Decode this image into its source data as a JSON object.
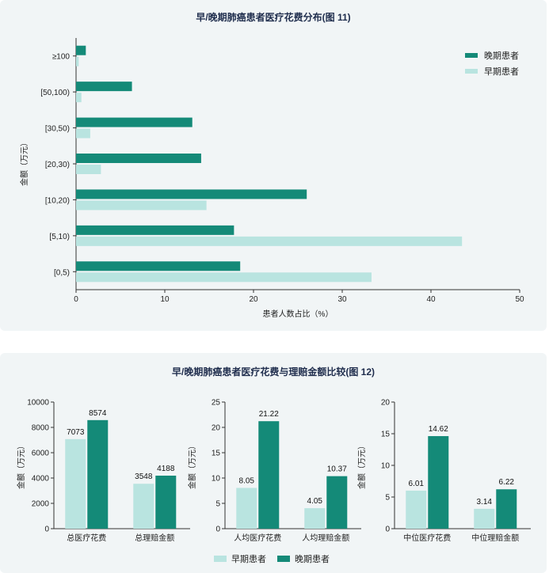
{
  "colors": {
    "early": "#b9e4e0",
    "late": "#148a78",
    "title": "#1f2d4d"
  },
  "chart_data": [
    {
      "type": "bar",
      "orientation": "horizontal",
      "title": "早/晚期肺癌患者医疗花费分布(图 11)",
      "xlabel": "患者人数占比（%）",
      "ylabel": "金额（万元）",
      "xlim": [
        0,
        50
      ],
      "xticks": [
        "0",
        "10",
        "20",
        "30",
        "40",
        "50"
      ],
      "categories": [
        "≥100",
        "[50,100)",
        "[30,50)",
        "[20,30)",
        "[10,20)",
        "[5,10)",
        "[0,5)"
      ],
      "series": [
        {
          "name": "晚期患者",
          "values": [
            1.1,
            6.3,
            13.1,
            14.1,
            26.0,
            17.8,
            18.5
          ]
        },
        {
          "name": "早期患者",
          "values": [
            0.3,
            0.6,
            1.6,
            2.8,
            14.7,
            43.5,
            33.3
          ]
        }
      ],
      "legend": "top-right"
    },
    {
      "type": "bar",
      "title": "早/晚期肺癌患者医疗花费与理赔金额比较(图 12)",
      "legend": "bottom-center",
      "legend_labels": [
        "早期患者",
        "晚期患者"
      ],
      "subplots": [
        {
          "ylabel": "金额（万元）",
          "ylim": [
            0,
            10000
          ],
          "yticks": [
            "0",
            "2000",
            "4000",
            "6000",
            "8000",
            "10000"
          ],
          "categories": [
            "总医疗花费",
            "总理赔金额"
          ],
          "early": [
            7073,
            3548
          ],
          "late": [
            8574,
            4188
          ],
          "early_labels": [
            "7073",
            "3548"
          ],
          "late_labels": [
            "8574",
            "4188"
          ]
        },
        {
          "ylabel": "金额（万元）",
          "ylim": [
            0,
            25
          ],
          "yticks": [
            "0",
            "5",
            "10",
            "15",
            "20",
            "25"
          ],
          "categories": [
            "人均医疗花费",
            "人均理赔金额"
          ],
          "early": [
            8.05,
            4.05
          ],
          "late": [
            21.22,
            10.37
          ],
          "early_labels": [
            "8.05",
            "4.05"
          ],
          "late_labels": [
            "21.22",
            "10.37"
          ]
        },
        {
          "ylabel": "金额（万元）",
          "ylim": [
            0,
            20
          ],
          "yticks": [
            "0",
            "5",
            "10",
            "15",
            "20"
          ],
          "categories": [
            "中位医疗花费",
            "中位理赔金额"
          ],
          "early": [
            6.01,
            3.14
          ],
          "late": [
            14.62,
            6.22
          ],
          "early_labels": [
            "6.01",
            "3.14"
          ],
          "late_labels": [
            "14.62",
            "6.22"
          ]
        }
      ]
    }
  ]
}
